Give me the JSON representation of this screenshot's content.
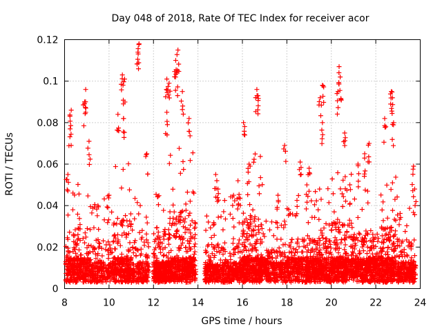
{
  "chart_data": {
    "type": "scatter",
    "title": "Day 048 of 2018, Rate Of TEC Index for receiver acor",
    "xlabel": "GPS time / hours",
    "ylabel": "ROTI / TECUs",
    "xlim": [
      8,
      24
    ],
    "ylim": [
      0,
      0.12
    ],
    "xticks": [
      8,
      10,
      12,
      14,
      16,
      18,
      20,
      22,
      24
    ],
    "xtick_labels": [
      "8",
      "10",
      "12",
      "14",
      "16",
      "18",
      "20",
      "22",
      "24"
    ],
    "yticks": [
      0,
      0.02,
      0.04,
      0.06,
      0.08,
      0.1,
      0.12
    ],
    "ytick_labels": [
      "0",
      "0.02",
      "0.04",
      "0.06",
      "0.08",
      "0.1",
      "0.12"
    ],
    "grid": true,
    "marker": "plus",
    "color": "#ff0000",
    "series": [
      {
        "name": "ROTI",
        "clusters": [
          {
            "x_start": 8.05,
            "x_end": 9.2,
            "n": 330,
            "base": 0.012,
            "spread": 0.045,
            "peaks": [
              [
                8.15,
                0.055
              ],
              [
                8.3,
                0.086
              ],
              [
                8.25,
                0.077
              ],
              [
                8.95,
                0.096
              ],
              [
                8.9,
                0.09
              ],
              [
                9.1,
                0.071
              ]
            ]
          },
          {
            "x_start": 9.2,
            "x_end": 10.2,
            "n": 220,
            "base": 0.01,
            "spread": 0.035,
            "peaks": [
              [
                9.5,
                0.04
              ],
              [
                10.0,
                0.045
              ]
            ]
          },
          {
            "x_start": 10.2,
            "x_end": 11.0,
            "n": 260,
            "base": 0.012,
            "spread": 0.055,
            "peaks": [
              [
                10.4,
                0.084
              ],
              [
                10.6,
                0.103
              ],
              [
                10.7,
                0.101
              ],
              [
                10.65,
                0.082
              ]
            ]
          },
          {
            "x_start": 11.0,
            "x_end": 11.8,
            "n": 180,
            "base": 0.01,
            "spread": 0.035,
            "peaks": [
              [
                11.35,
                0.118
              ],
              [
                11.3,
                0.114
              ],
              [
                11.7,
                0.065
              ]
            ]
          },
          {
            "x_start": 12.0,
            "x_end": 12.7,
            "n": 280,
            "base": 0.01,
            "spread": 0.045,
            "peaks": [
              [
                12.6,
                0.101
              ],
              [
                12.7,
                0.099
              ],
              [
                12.6,
                0.085
              ]
            ]
          },
          {
            "x_start": 12.7,
            "x_end": 13.9,
            "n": 420,
            "base": 0.012,
            "spread": 0.06,
            "peaks": [
              [
                13.1,
                0.115
              ],
              [
                13.0,
                0.11
              ],
              [
                13.05,
                0.104
              ],
              [
                13.3,
                0.095
              ],
              [
                13.6,
                0.082
              ]
            ]
          },
          {
            "x_start": 14.3,
            "x_end": 15.1,
            "n": 200,
            "base": 0.009,
            "spread": 0.03,
            "peaks": [
              [
                14.8,
                0.055
              ],
              [
                14.9,
                0.048
              ]
            ]
          },
          {
            "x_start": 15.1,
            "x_end": 16.0,
            "n": 240,
            "base": 0.01,
            "spread": 0.035,
            "peaks": [
              [
                15.8,
                0.052
              ],
              [
                15.6,
                0.045
              ]
            ]
          },
          {
            "x_start": 16.0,
            "x_end": 16.9,
            "n": 360,
            "base": 0.012,
            "spread": 0.055,
            "peaks": [
              [
                16.65,
                0.096
              ],
              [
                16.7,
                0.093
              ],
              [
                16.05,
                0.08
              ],
              [
                16.3,
                0.06
              ]
            ]
          },
          {
            "x_start": 16.9,
            "x_end": 18.0,
            "n": 260,
            "base": 0.01,
            "spread": 0.025,
            "peaks": [
              [
                17.9,
                0.069
              ],
              [
                17.6,
                0.045
              ]
            ]
          },
          {
            "x_start": 18.0,
            "x_end": 19.2,
            "n": 340,
            "base": 0.012,
            "spread": 0.035,
            "peaks": [
              [
                18.6,
                0.061
              ],
              [
                19.0,
                0.058
              ],
              [
                18.9,
                0.05
              ]
            ]
          },
          {
            "x_start": 19.2,
            "x_end": 20.0,
            "n": 280,
            "base": 0.012,
            "spread": 0.04,
            "peaks": [
              [
                19.6,
                0.098
              ],
              [
                19.5,
                0.092
              ],
              [
                19.6,
                0.08
              ]
            ]
          },
          {
            "x_start": 20.0,
            "x_end": 21.0,
            "n": 360,
            "base": 0.012,
            "spread": 0.05,
            "peaks": [
              [
                20.35,
                0.107
              ],
              [
                20.4,
                0.102
              ],
              [
                20.3,
                0.095
              ],
              [
                20.6,
                0.075
              ]
            ]
          },
          {
            "x_start": 21.0,
            "x_end": 22.0,
            "n": 340,
            "base": 0.012,
            "spread": 0.04,
            "peaks": [
              [
                21.7,
                0.07
              ],
              [
                21.5,
                0.065
              ],
              [
                21.2,
                0.06
              ]
            ]
          },
          {
            "x_start": 22.0,
            "x_end": 22.9,
            "n": 320,
            "base": 0.012,
            "spread": 0.045,
            "peaks": [
              [
                22.7,
                0.095
              ],
              [
                22.75,
                0.092
              ],
              [
                22.4,
                0.082
              ],
              [
                22.8,
                0.08
              ]
            ]
          },
          {
            "x_start": 22.9,
            "x_end": 23.8,
            "n": 240,
            "base": 0.01,
            "spread": 0.035,
            "peaks": [
              [
                23.7,
                0.059
              ],
              [
                23.75,
                0.048
              ]
            ]
          }
        ]
      }
    ]
  }
}
